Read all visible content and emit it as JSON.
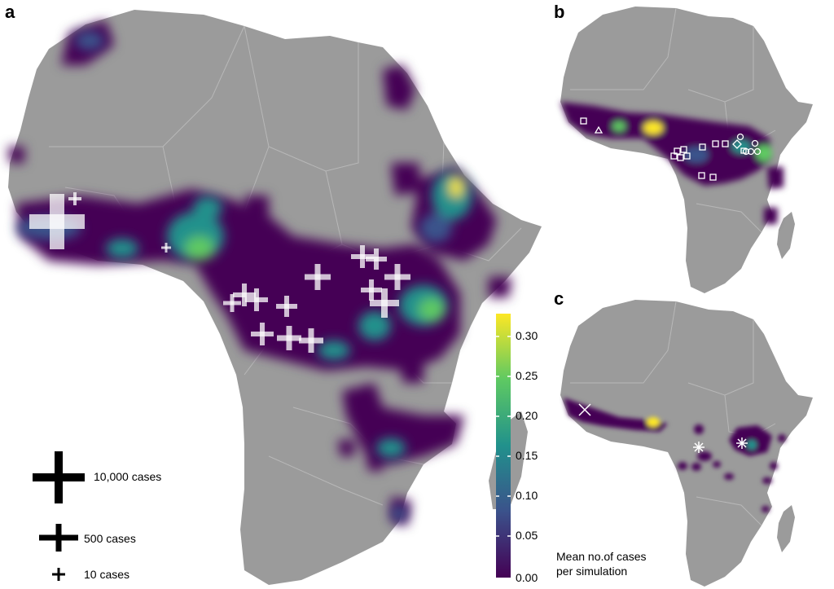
{
  "panels": {
    "a": "a",
    "b": "b",
    "c": "c"
  },
  "colors": {
    "land": "#9b9b9b",
    "border": "#b8b8b8",
    "case_marker": "#ffffff",
    "viridis": [
      "#440154",
      "#3b528b",
      "#21918c",
      "#5ec962",
      "#fde725"
    ]
  },
  "case_legend": {
    "items": [
      {
        "label": "10,000 cases",
        "cases": 10000
      },
      {
        "label": "500 cases",
        "cases": 500
      },
      {
        "label": "10 cases",
        "cases": 10
      }
    ]
  },
  "colorbar": {
    "title_line1": "Mean no.of cases",
    "title_line2": "per simulation",
    "ticks": [
      "0.30",
      "0.25",
      "0.20",
      "0.15",
      "0.10",
      "0.05",
      "0.00"
    ],
    "range": [
      0.0,
      0.33
    ]
  },
  "panel_b_markers": [
    "square",
    "triangle",
    "circle",
    "diamond"
  ],
  "panel_c_markers": [
    "x-mark",
    "asterisk"
  ]
}
